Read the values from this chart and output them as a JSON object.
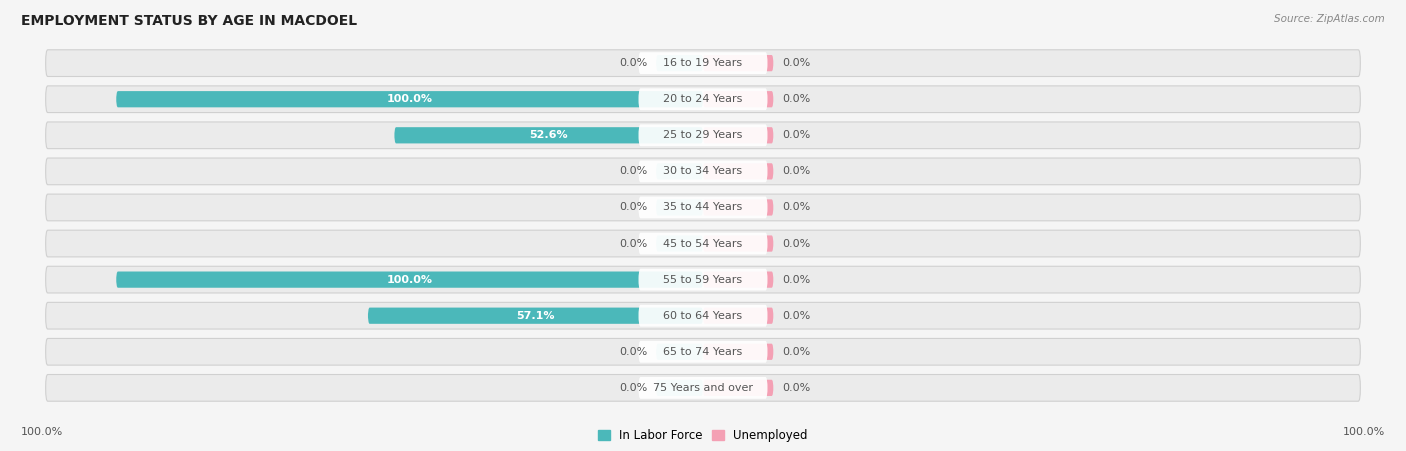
{
  "title": "EMPLOYMENT STATUS BY AGE IN MACDOEL",
  "source": "Source: ZipAtlas.com",
  "age_groups": [
    "16 to 19 Years",
    "20 to 24 Years",
    "25 to 29 Years",
    "30 to 34 Years",
    "35 to 44 Years",
    "45 to 54 Years",
    "55 to 59 Years",
    "60 to 64 Years",
    "65 to 74 Years",
    "75 Years and over"
  ],
  "in_labor_force": [
    0.0,
    100.0,
    52.6,
    0.0,
    0.0,
    0.0,
    100.0,
    57.1,
    0.0,
    0.0
  ],
  "unemployed": [
    0.0,
    0.0,
    0.0,
    0.0,
    0.0,
    0.0,
    0.0,
    0.0,
    0.0,
    0.0
  ],
  "labor_color": "#4bb8ba",
  "labor_color_light": "#8dd4d5",
  "unemployed_color": "#f4a0b4",
  "row_bg_color": "#ebebeb",
  "fig_bg_color": "#f5f5f5",
  "label_white": "#ffffff",
  "label_dark": "#555555",
  "axis_label_left": "100.0%",
  "axis_label_right": "100.0%",
  "title_fontsize": 10,
  "label_fontsize": 8,
  "age_fontsize": 8,
  "legend_fontsize": 8.5,
  "source_fontsize": 7.5,
  "max_val": 100.0,
  "placeholder_labor": 8.0,
  "placeholder_unemployed": 12.0
}
